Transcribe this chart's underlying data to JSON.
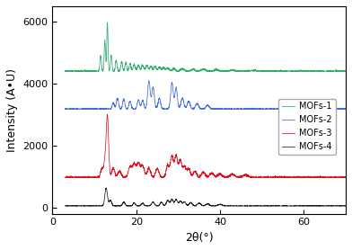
{
  "title": "",
  "xlabel": "2θ(°)",
  "ylabel": "Intensity (A•U)",
  "xlim": [
    0,
    70
  ],
  "ylim": [
    -200,
    6500
  ],
  "yticks": [
    0,
    2000,
    4000,
    6000
  ],
  "xticks": [
    0,
    20,
    40,
    60
  ],
  "colors": {
    "MOFs-1": "#2eab6e",
    "MOFs-2": "#4169e1",
    "MOFs-3": "#e01020",
    "MOFs-4": "#1a1a1a"
  },
  "offsets": {
    "MOFs-1": 4400,
    "MOFs-2": 3180,
    "MOFs-3": 970,
    "MOFs-4": 50
  },
  "background_color": "#ffffff",
  "seed": 42
}
